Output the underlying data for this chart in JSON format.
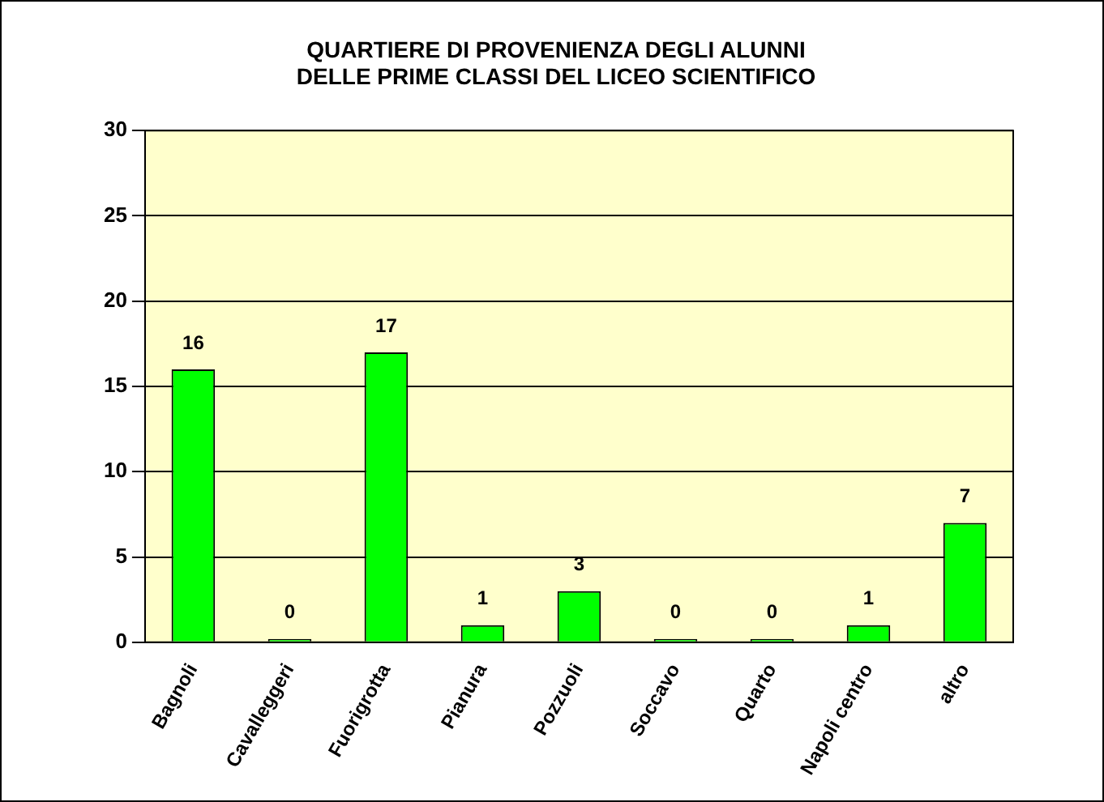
{
  "chart_data": {
    "type": "bar",
    "title": "QUARTIERE DI PROVENIENZA DEGLI ALUNNI\nDELLE PRIME CLASSI DEL LICEO SCIENTIFICO",
    "categories": [
      "Bagnoli",
      "Cavalleggeri",
      "Fuorigrotta",
      "Pianura",
      "Pozzuoli",
      "Soccavo",
      "Quarto",
      "Napoli centro",
      "altro"
    ],
    "values": [
      16,
      0,
      17,
      1,
      3,
      0,
      0,
      1,
      7
    ],
    "color": "#00ff00",
    "ylim": [
      0,
      30
    ],
    "yticks": [
      0,
      5,
      10,
      15,
      20,
      25,
      30
    ],
    "grid": "y",
    "data_labels": true
  }
}
